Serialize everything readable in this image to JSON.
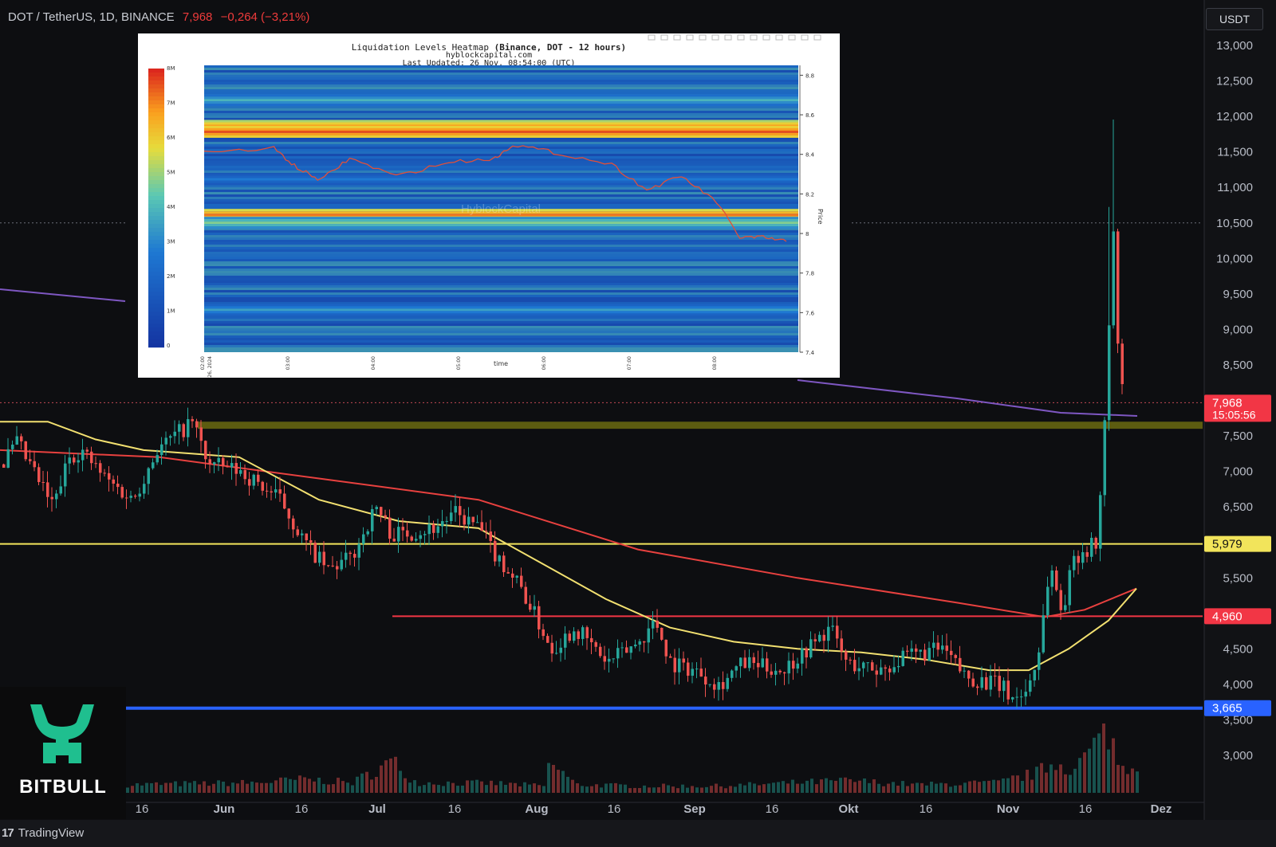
{
  "header": {
    "symbol": "DOT / TetherUS, 1D, BINANCE",
    "price": "7,968",
    "change": "−0,264 (−3,21%)"
  },
  "currency_button": "USDT",
  "price_axis": {
    "ticks": [
      "13,000",
      "12,500",
      "12,000",
      "11,500",
      "11,000",
      "10,500",
      "10,000",
      "9,500",
      "9,000",
      "8,500",
      "7,500",
      "7,000",
      "6,500",
      "5,500",
      "4,500",
      "4,000",
      "3,500",
      "3,000"
    ],
    "tick_values": [
      13,
      12.5,
      12,
      11.5,
      11,
      10.5,
      10,
      9.5,
      9,
      8.5,
      7.5,
      7,
      6.5,
      5.5,
      4.5,
      4,
      3.5,
      3
    ],
    "labels": [
      {
        "text": "7,968",
        "value": 7.968,
        "color": "#f23645",
        "timer": "15:05:56"
      },
      {
        "text": "5,979",
        "value": 5.979,
        "color": "#f2e45b"
      },
      {
        "text": "4,960",
        "value": 4.96,
        "color": "#f23645"
      },
      {
        "text": "3,665",
        "value": 3.665,
        "color": "#2962ff"
      }
    ]
  },
  "time_axis": [
    "16",
    "Jun",
    "16",
    "Jul",
    "16",
    "Aug",
    "16",
    "Sep",
    "16",
    "Okt",
    "16",
    "Nov",
    "16",
    "Dez"
  ],
  "tradingview": "TradingView",
  "brand": {
    "name": "BITBULL",
    "color": "#1fbf8f"
  },
  "inset": {
    "title_a": "Liquidation Levels Heatmap ",
    "title_b": "(Binance, DOT - 12 hours)",
    "subtitle": "hyblockcapital.com",
    "updated": "Last Updated: 26 Nov, 08:54:00 (UTC)",
    "watermark": "HyblockCapital",
    "colorbar_ticks": [
      "8M",
      "7M",
      "6M",
      "5M",
      "4M",
      "3M",
      "2M",
      "1M",
      "0"
    ],
    "y_ticks": [
      "8.8",
      "8.6",
      "8.4",
      "8.2",
      "8",
      "7.8",
      "7.6",
      "7.4"
    ],
    "y_label": "Price",
    "x_ticks": [
      "02:00\nNov 26, 2024",
      "03:00",
      "04:00",
      "05:00",
      "06:00",
      "07:00",
      "08:00"
    ],
    "x_label": "time"
  },
  "chart_data": [
    {
      "type": "candlestick",
      "title": "DOT / TetherUS, 1D, BINANCE",
      "ylim": [
        2.55,
        13.4
      ],
      "key_levels": [
        7.968,
        5.979,
        4.96,
        3.665
      ],
      "resistance_zone": [
        7.6,
        7.7
      ],
      "price_path": [
        [
          0,
          7.1
        ],
        [
          20,
          7.4
        ],
        [
          40,
          7.0
        ],
        [
          65,
          6.5
        ],
        [
          85,
          7.2
        ],
        [
          100,
          7.3
        ],
        [
          130,
          6.9
        ],
        [
          165,
          6.6
        ],
        [
          195,
          7.3
        ],
        [
          240,
          7.7
        ],
        [
          260,
          7.1
        ],
        [
          300,
          7.0
        ],
        [
          325,
          6.8
        ],
        [
          350,
          6.6
        ],
        [
          380,
          6.0
        ],
        [
          410,
          5.6
        ],
        [
          440,
          5.8
        ],
        [
          470,
          6.5
        ],
        [
          490,
          6.1
        ],
        [
          540,
          6.2
        ],
        [
          570,
          6.4
        ],
        [
          600,
          6.2
        ],
        [
          615,
          5.9
        ],
        [
          650,
          5.4
        ],
        [
          690,
          4.5
        ],
        [
          720,
          4.8
        ],
        [
          760,
          4.3
        ],
        [
          800,
          4.6
        ],
        [
          820,
          4.9
        ],
        [
          840,
          4.3
        ],
        [
          870,
          4.2
        ],
        [
          900,
          4.0
        ],
        [
          930,
          4.3
        ],
        [
          980,
          4.2
        ],
        [
          1010,
          4.5
        ],
        [
          1040,
          4.8
        ],
        [
          1060,
          4.3
        ],
        [
          1100,
          4.2
        ],
        [
          1140,
          4.4
        ],
        [
          1180,
          4.5
        ],
        [
          1210,
          4.1
        ],
        [
          1250,
          4.0
        ],
        [
          1270,
          3.8
        ],
        [
          1285,
          3.9
        ],
        [
          1300,
          4.4
        ],
        [
          1315,
          5.7
        ],
        [
          1330,
          5.0
        ],
        [
          1345,
          5.8
        ],
        [
          1360,
          5.9
        ],
        [
          1375,
          6.0
        ],
        [
          1383,
          7.6
        ],
        [
          1390,
          9.3
        ],
        [
          1395,
          10.5
        ],
        [
          1400,
          8.8
        ],
        [
          1408,
          7.97
        ]
      ],
      "volume": [
        [
          0,
          0.1
        ],
        [
          160,
          0.12
        ],
        [
          320,
          0.15
        ],
        [
          380,
          0.2
        ],
        [
          440,
          0.15
        ],
        [
          490,
          0.46
        ],
        [
          520,
          0.15
        ],
        [
          620,
          0.14
        ],
        [
          680,
          0.1
        ],
        [
          688,
          0.46
        ],
        [
          720,
          0.12
        ],
        [
          800,
          0.1
        ],
        [
          900,
          0.1
        ],
        [
          1060,
          0.18
        ],
        [
          1150,
          0.12
        ],
        [
          1250,
          0.15
        ],
        [
          1300,
          0.3
        ],
        [
          1320,
          0.46
        ],
        [
          1345,
          0.35
        ],
        [
          1390,
          0.95
        ],
        [
          1400,
          0.4
        ]
      ]
    },
    {
      "type": "heatmap",
      "title": "Liquidation Levels Heatmap (Binance, DOT - 12 hours)",
      "xlabel": "time",
      "ylabel": "Price",
      "ylim": [
        7.4,
        8.85
      ],
      "colorbar_range": [
        "0",
        "8M"
      ],
      "hot_bands": [
        {
          "price": 8.55,
          "intensity": 0.85
        },
        {
          "price": 8.52,
          "intensity": 0.95
        },
        {
          "price": 8.68,
          "intensity": 0.5
        },
        {
          "price": 8.1,
          "intensity": 0.9
        },
        {
          "price": 8.06,
          "intensity": 0.6
        },
        {
          "price": 7.62,
          "intensity": 0.45
        },
        {
          "price": 8.28,
          "intensity": 0.35
        }
      ],
      "price_path": [
        [
          0,
          8.41
        ],
        [
          0.12,
          8.43
        ],
        [
          0.16,
          8.33
        ],
        [
          0.2,
          8.27
        ],
        [
          0.25,
          8.38
        ],
        [
          0.33,
          8.29
        ],
        [
          0.42,
          8.36
        ],
        [
          0.5,
          8.38
        ],
        [
          0.53,
          8.45
        ],
        [
          0.6,
          8.41
        ],
        [
          0.7,
          8.35
        ],
        [
          0.76,
          8.22
        ],
        [
          0.82,
          8.29
        ],
        [
          0.88,
          8.16
        ],
        [
          0.92,
          7.98
        ],
        [
          0.96,
          7.98
        ],
        [
          1.0,
          7.96
        ]
      ]
    }
  ]
}
